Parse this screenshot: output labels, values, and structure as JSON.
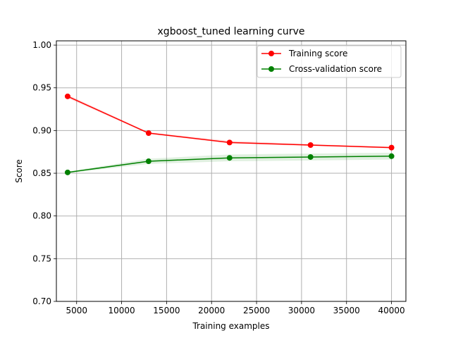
{
  "chart_data": {
    "type": "line",
    "title": "xgboost_tuned learning curve",
    "xlabel": "Training examples",
    "ylabel": "Score",
    "xlim": [
      2750,
      41600
    ],
    "ylim": [
      0.7,
      1.005
    ],
    "x_ticks": [
      5000,
      10000,
      15000,
      20000,
      25000,
      30000,
      35000,
      40000
    ],
    "x_tick_labels": [
      "5000",
      "10000",
      "15000",
      "20000",
      "25000",
      "30000",
      "35000",
      "40000"
    ],
    "y_ticks": [
      0.7,
      0.75,
      0.8,
      0.85,
      0.9,
      0.95,
      1.0
    ],
    "y_tick_labels": [
      "0.70",
      "0.75",
      "0.80",
      "0.85",
      "0.90",
      "0.95",
      "1.00"
    ],
    "grid": true,
    "legend_position": "top-right",
    "x": [
      4000,
      13000,
      22000,
      31000,
      40000
    ],
    "series": [
      {
        "name": "Training score",
        "color": "#ff0000",
        "values": [
          0.94,
          0.897,
          0.886,
          0.883,
          0.88
        ],
        "band_low": [
          0.938,
          0.896,
          0.885,
          0.882,
          0.879
        ],
        "band_high": [
          0.942,
          0.898,
          0.888,
          0.884,
          0.881
        ]
      },
      {
        "name": "Cross-validation score",
        "color": "#008000",
        "values": [
          0.851,
          0.864,
          0.868,
          0.869,
          0.87
        ],
        "band_low": [
          0.85,
          0.861,
          0.864,
          0.865,
          0.866
        ],
        "band_high": [
          0.852,
          0.867,
          0.872,
          0.873,
          0.874
        ]
      }
    ]
  }
}
